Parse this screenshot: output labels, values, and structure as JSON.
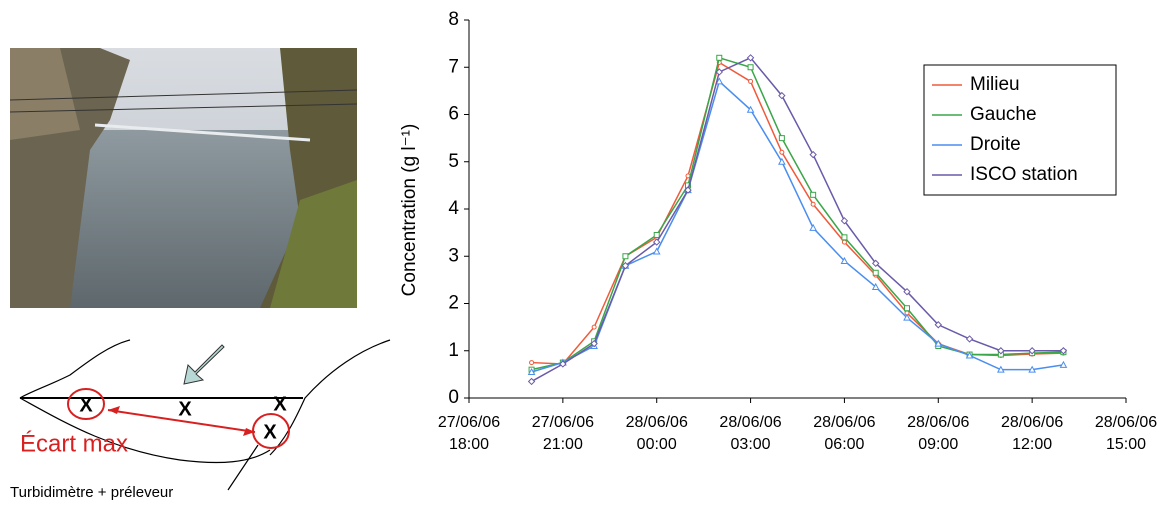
{
  "chart_data": {
    "type": "line",
    "y_label": "Concentration (g l⁻¹)",
    "x": [
      "27/06/06 20:00",
      "27/06/06 21:00",
      "27/06/06 22:00",
      "27/06/06 23:00",
      "28/06/06 00:00",
      "28/06/06 01:00",
      "28/06/06 02:00",
      "28/06/06 03:00",
      "28/06/06 04:00",
      "28/06/06 05:00",
      "28/06/06 06:00",
      "28/06/06 07:00",
      "28/06/06 08:00",
      "28/06/06 09:00",
      "28/06/06 10:00",
      "28/06/06 11:00",
      "28/06/06 12:00",
      "28/06/06 13:00"
    ],
    "series": [
      {
        "name": "Milieu",
        "color": "#f05a3a",
        "values": [
          0.75,
          0.72,
          1.5,
          3.0,
          3.4,
          4.7,
          7.1,
          6.7,
          5.2,
          4.1,
          3.3,
          2.6,
          1.8,
          1.15,
          0.92,
          0.9,
          0.93,
          0.95
        ]
      },
      {
        "name": "Gauche",
        "color": "#3aa648",
        "values": [
          0.6,
          0.75,
          1.2,
          3.0,
          3.45,
          4.5,
          7.2,
          7.0,
          5.5,
          4.3,
          3.4,
          2.65,
          1.9,
          1.1,
          0.92,
          0.92,
          0.95,
          0.97
        ]
      },
      {
        "name": "Droite",
        "color": "#4a8ef0",
        "values": [
          0.55,
          0.75,
          1.1,
          2.8,
          3.1,
          4.4,
          6.7,
          6.1,
          5.0,
          3.6,
          2.9,
          2.35,
          1.7,
          1.15,
          0.9,
          0.6,
          0.6,
          0.7
        ]
      },
      {
        "name": "ISCO station",
        "color": "#6a5aaa",
        "values": [
          0.35,
          0.72,
          1.15,
          2.8,
          3.3,
          4.4,
          6.9,
          7.2,
          6.4,
          5.15,
          3.75,
          2.85,
          2.25,
          1.55,
          1.25,
          1.0,
          1.0,
          1.0
        ]
      }
    ],
    "xlim": [
      "27/06/06 18:00",
      "28/06/06 15:00"
    ],
    "xticks": [
      "27/06/06 18:00",
      "27/06/06 21:00",
      "28/06/06 00:00",
      "28/06/06 03:00",
      "28/06/06 06:00",
      "28/06/06 09:00",
      "28/06/06 12:00",
      "28/06/06 15:00"
    ],
    "ylim": [
      0,
      8
    ],
    "yticks": [
      0,
      1,
      2,
      3,
      4,
      5,
      6,
      7,
      8
    ],
    "legend": "upper right"
  },
  "diagram": {
    "markers": [
      "X",
      "X",
      "X",
      "X"
    ],
    "label": "Écart max",
    "caption": "Turbidimètre + préleveur"
  }
}
